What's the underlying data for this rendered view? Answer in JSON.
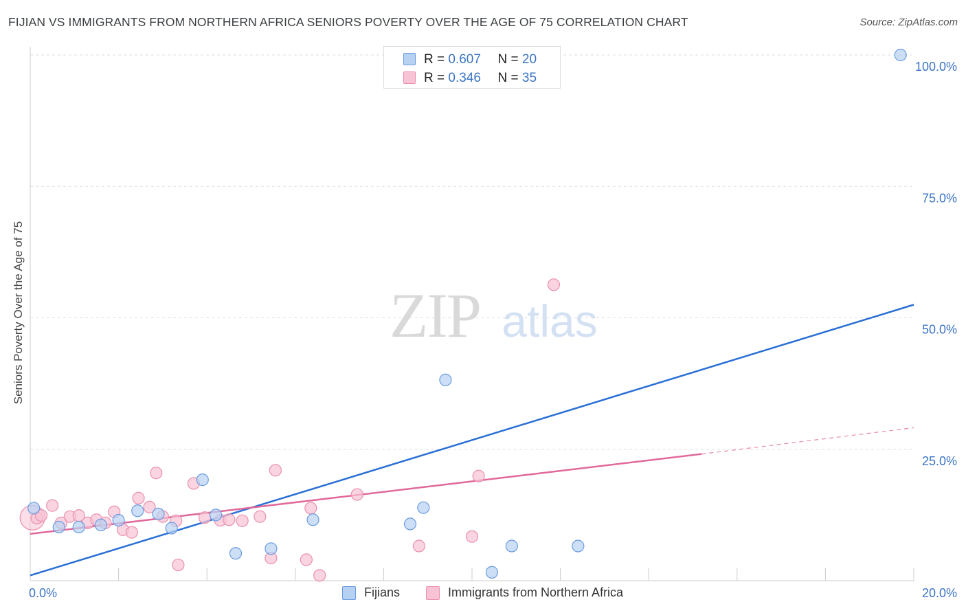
{
  "header": {
    "title": "FIJIAN VS IMMIGRANTS FROM NORTHERN AFRICA SENIORS POVERTY OVER THE AGE OF 75 CORRELATION CHART",
    "source": "Source: ZipAtlas.com"
  },
  "watermark": {
    "zip": "ZIP",
    "atlas": "atlas"
  },
  "legend": {
    "rows": [
      {
        "r_label": "R =",
        "r_value": "0.607",
        "n_label": "N =",
        "n_value": "20"
      },
      {
        "r_label": "R =",
        "r_value": "0.346",
        "n_label": "N =",
        "n_value": "35"
      }
    ]
  },
  "colors": {
    "fijians_fill": "#b7d1f2",
    "fijians_stroke": "#6a9be0",
    "fijians_line": "#2a6fd4",
    "immigrants_fill": "#f8c3d4",
    "immigrants_stroke": "#ea8fae",
    "immigrants_line": "#e0689a",
    "axis_label_blue": "#3b74c5",
    "grid": "#dddddd"
  },
  "chart_data": {
    "type": "scatter",
    "title": "FIJIAN VS IMMIGRANTS FROM NORTHERN AFRICA SENIORS POVERTY OVER THE AGE OF 75 CORRELATION CHART",
    "xlabel": "",
    "ylabel": "Seniors Poverty Over the Age of 75",
    "xlim": [
      0,
      20
    ],
    "ylim": [
      0,
      100
    ],
    "x_tick_labels": [
      "0.0%",
      "20.0%"
    ],
    "y_ticks": [
      25,
      50,
      75,
      100
    ],
    "y_tick_labels": [
      "25.0%",
      "50.0%",
      "75.0%",
      "100.0%"
    ],
    "legend_position": "top-center",
    "series": [
      {
        "name": "Fijians",
        "r": 0.607,
        "n": 20,
        "points": [
          {
            "x": 0.08,
            "y": 13.8
          },
          {
            "x": 0.65,
            "y": 10.2
          },
          {
            "x": 1.1,
            "y": 10.2
          },
          {
            "x": 1.6,
            "y": 10.6
          },
          {
            "x": 2.0,
            "y": 11.5
          },
          {
            "x": 2.43,
            "y": 13.3
          },
          {
            "x": 2.9,
            "y": 12.7
          },
          {
            "x": 3.2,
            "y": 10.0
          },
          {
            "x": 3.9,
            "y": 19.2
          },
          {
            "x": 4.2,
            "y": 12.5
          },
          {
            "x": 4.65,
            "y": 5.2
          },
          {
            "x": 5.45,
            "y": 6.1
          },
          {
            "x": 6.4,
            "y": 11.6
          },
          {
            "x": 8.6,
            "y": 10.8
          },
          {
            "x": 8.9,
            "y": 13.9
          },
          {
            "x": 9.4,
            "y": 38.2
          },
          {
            "x": 10.45,
            "y": 1.6
          },
          {
            "x": 10.9,
            "y": 6.6
          },
          {
            "x": 12.4,
            "y": 6.6
          },
          {
            "x": 19.7,
            "y": 100.0
          }
        ],
        "trend": {
          "x": [
            0,
            20
          ],
          "y": [
            1.0,
            52.5
          ]
        }
      },
      {
        "name": "Immigrants from Northern Africa",
        "r": 0.346,
        "n": 35,
        "points": [
          {
            "x": 0.05,
            "y": 12.0
          },
          {
            "x": 0.15,
            "y": 11.9
          },
          {
            "x": 0.25,
            "y": 12.4
          },
          {
            "x": 0.5,
            "y": 14.3
          },
          {
            "x": 0.7,
            "y": 11.0
          },
          {
            "x": 0.9,
            "y": 12.2
          },
          {
            "x": 1.1,
            "y": 12.4
          },
          {
            "x": 1.3,
            "y": 11.0
          },
          {
            "x": 1.5,
            "y": 11.6
          },
          {
            "x": 1.7,
            "y": 11.0
          },
          {
            "x": 1.9,
            "y": 13.1
          },
          {
            "x": 2.1,
            "y": 9.7
          },
          {
            "x": 2.3,
            "y": 9.2
          },
          {
            "x": 2.45,
            "y": 15.7
          },
          {
            "x": 2.7,
            "y": 14.0
          },
          {
            "x": 2.85,
            "y": 20.5
          },
          {
            "x": 3.0,
            "y": 12.2
          },
          {
            "x": 3.3,
            "y": 11.4
          },
          {
            "x": 3.35,
            "y": 3.0
          },
          {
            "x": 3.7,
            "y": 18.5
          },
          {
            "x": 3.95,
            "y": 12.0
          },
          {
            "x": 4.3,
            "y": 11.5
          },
          {
            "x": 4.5,
            "y": 11.6
          },
          {
            "x": 4.8,
            "y": 11.4
          },
          {
            "x": 5.2,
            "y": 12.2
          },
          {
            "x": 5.45,
            "y": 4.3
          },
          {
            "x": 5.55,
            "y": 21.0
          },
          {
            "x": 6.25,
            "y": 4.0
          },
          {
            "x": 6.35,
            "y": 13.8
          },
          {
            "x": 6.55,
            "y": 1.0
          },
          {
            "x": 7.4,
            "y": 16.4
          },
          {
            "x": 8.8,
            "y": 6.6
          },
          {
            "x": 10.0,
            "y": 8.4
          },
          {
            "x": 10.15,
            "y": 19.9
          },
          {
            "x": 11.85,
            "y": 56.3
          }
        ],
        "trend": {
          "x": [
            0,
            15.2
          ],
          "y": [
            8.9,
            24.1
          ]
        },
        "trend_dashed": {
          "x": [
            15.2,
            20
          ],
          "y": [
            24.1,
            29.1
          ]
        }
      }
    ]
  }
}
